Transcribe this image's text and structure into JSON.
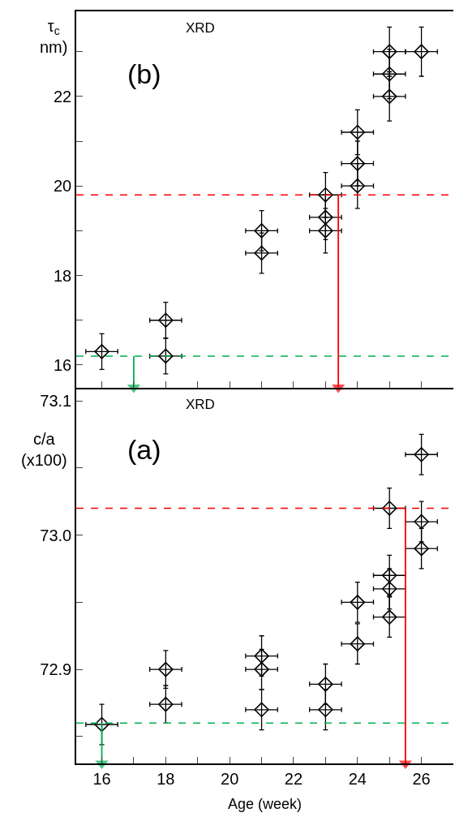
{
  "chart_data": [
    {
      "type": "scatter",
      "ylabel": "τ$_{c}$\nnm)",
      "annotations": [
        "XRD",
        "(b)"
      ],
      "marker": "diamond",
      "grid": false,
      "tick_labels": "y",
      "x": [
        16,
        18,
        18,
        21,
        21,
        23,
        23,
        23,
        24,
        24,
        24,
        25,
        25,
        25,
        26
      ],
      "series": [
        {
          "color": "#000000",
          "values": [
            16.3,
            17.0,
            16.2,
            19.0,
            18.5,
            19.8,
            19.3,
            19.0,
            21.2,
            20.5,
            20.0,
            23.0,
            22.5,
            22.0,
            23.0
          ],
          "errors": [
            0.4,
            0.4,
            0.4,
            0.45,
            0.45,
            0.5,
            0.5,
            0.5,
            0.5,
            0.5,
            0.5,
            0.55,
            0.55,
            0.55,
            0.55
          ],
          "xerrors": [
            0.5,
            0.5,
            0.5,
            0.5,
            0.5,
            0.5,
            0.5,
            0.5,
            0.5,
            0.5,
            0.5,
            0.5,
            0.5,
            0.5,
            0.5
          ]
        },
        {
          "type": "line",
          "color": "#ff0000",
          "marker": "triangle",
          "x": [
            23.4,
            23.4
          ],
          "values": [
            19.8,
            15.5
          ]
        },
        {
          "type": "line",
          "color": "#00b050",
          "marker": "triangle",
          "x": [
            17,
            17
          ],
          "values": [
            16.2,
            15.5
          ]
        }
      ],
      "xlim": [
        15.2,
        27
      ],
      "xticks": [
        {
          "value": 16,
          "label": null
        },
        {
          "value": 17,
          "label": null
        },
        {
          "value": 18,
          "label": null
        },
        {
          "value": 19,
          "label": null
        },
        {
          "value": 20,
          "label": null
        },
        {
          "value": 21,
          "label": null
        },
        {
          "value": 22,
          "label": null
        },
        {
          "value": 23,
          "label": null
        },
        {
          "value": 24,
          "label": null
        },
        {
          "value": 25,
          "label": null
        },
        {
          "value": 26,
          "label": null
        }
      ],
      "ylim": [
        15.5,
        23.9
      ],
      "yticks": [
        16,
        {
          "value": 17,
          "label": null
        },
        18,
        {
          "value": 19,
          "label": null
        },
        20,
        {
          "value": 21,
          "label": null
        },
        22,
        {
          "value": 23,
          "label": null
        }
      ],
      "ref_lines": [
        {
          "axis": "y",
          "value": 19.8,
          "color": "#ff0000",
          "line_style": "dashed"
        },
        {
          "axis": "y",
          "value": 16.2,
          "color": "#00b050",
          "line_style": "dashed"
        }
      ]
    },
    {
      "type": "scatter",
      "ylabel": "c/a\n(x100)",
      "xlabel": "Age (week)",
      "annotations": [
        "XRD",
        "(a)"
      ],
      "marker": "diamond",
      "grid": false,
      "x": [
        16,
        18,
        18,
        21,
        21,
        21,
        23,
        23,
        24,
        24,
        25,
        25,
        25,
        25,
        26,
        26,
        26
      ],
      "series": [
        {
          "color": "#000000",
          "values": [
            72.859,
            72.9,
            72.874,
            72.91,
            72.9,
            72.87,
            72.889,
            72.87,
            72.95,
            72.919,
            73.02,
            72.97,
            72.96,
            72.939,
            73.06,
            73.01,
            72.99
          ],
          "errors": [
            0.015,
            0.014,
            0.014,
            0.015,
            0.015,
            0.015,
            0.015,
            0.015,
            0.015,
            0.015,
            0.015,
            0.015,
            0.015,
            0.015,
            0.015,
            0.015,
            0.015
          ],
          "xerrors": [
            0.5,
            0.5,
            0.5,
            0.5,
            0.5,
            0.5,
            0.5,
            0.5,
            0.5,
            0.5,
            0.5,
            0.5,
            0.5,
            0.5,
            0.5,
            0.5,
            0.5
          ]
        },
        {
          "type": "line",
          "color": "#ff0000",
          "marker": "triangle",
          "x": [
            25.5,
            25.5
          ],
          "values": [
            73.02,
            72.83
          ]
        },
        {
          "type": "line",
          "color": "#00b050",
          "marker": "triangle",
          "x": [
            16,
            16
          ],
          "values": [
            72.86,
            72.83
          ]
        }
      ],
      "xlim": [
        15.2,
        27
      ],
      "xticks": [
        16,
        {
          "value": 17,
          "label": null
        },
        18,
        {
          "value": 19,
          "label": null
        },
        20,
        {
          "value": 21,
          "label": null
        },
        22,
        {
          "value": 23,
          "label": null
        },
        24,
        {
          "value": 25,
          "label": null
        },
        26
      ],
      "ylim": [
        72.83,
        73.11
      ],
      "yticks": [
        {
          "value": 72.85,
          "label": null
        },
        72.9,
        {
          "value": 72.95,
          "label": null
        },
        {
          "value": 73.0,
          "label": "73.0"
        },
        {
          "value": 73.05,
          "label": null
        },
        73.1
      ],
      "ref_lines": [
        {
          "axis": "y",
          "value": 73.02,
          "color": "#ff0000",
          "line_style": "dashed"
        },
        {
          "axis": "y",
          "value": 72.86,
          "color": "#00b050",
          "line_style": "dashed"
        }
      ]
    }
  ]
}
